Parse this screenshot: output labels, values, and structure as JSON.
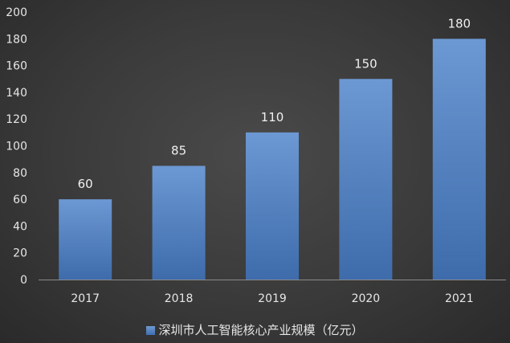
{
  "chart_data": {
    "type": "bar",
    "categories": [
      "2017",
      "2018",
      "2019",
      "2020",
      "2021"
    ],
    "series": [
      {
        "name": "深圳市人工智能核心产业规模（亿元）",
        "values": [
          60,
          85,
          110,
          150,
          180
        ]
      }
    ],
    "ylim": [
      0,
      200
    ],
    "yticks": [
      0,
      20,
      40,
      60,
      80,
      100,
      120,
      140,
      160,
      180,
      200
    ],
    "data_labels": true,
    "legend": "bottom",
    "grid": false,
    "bar_color": "#5b86c5"
  }
}
